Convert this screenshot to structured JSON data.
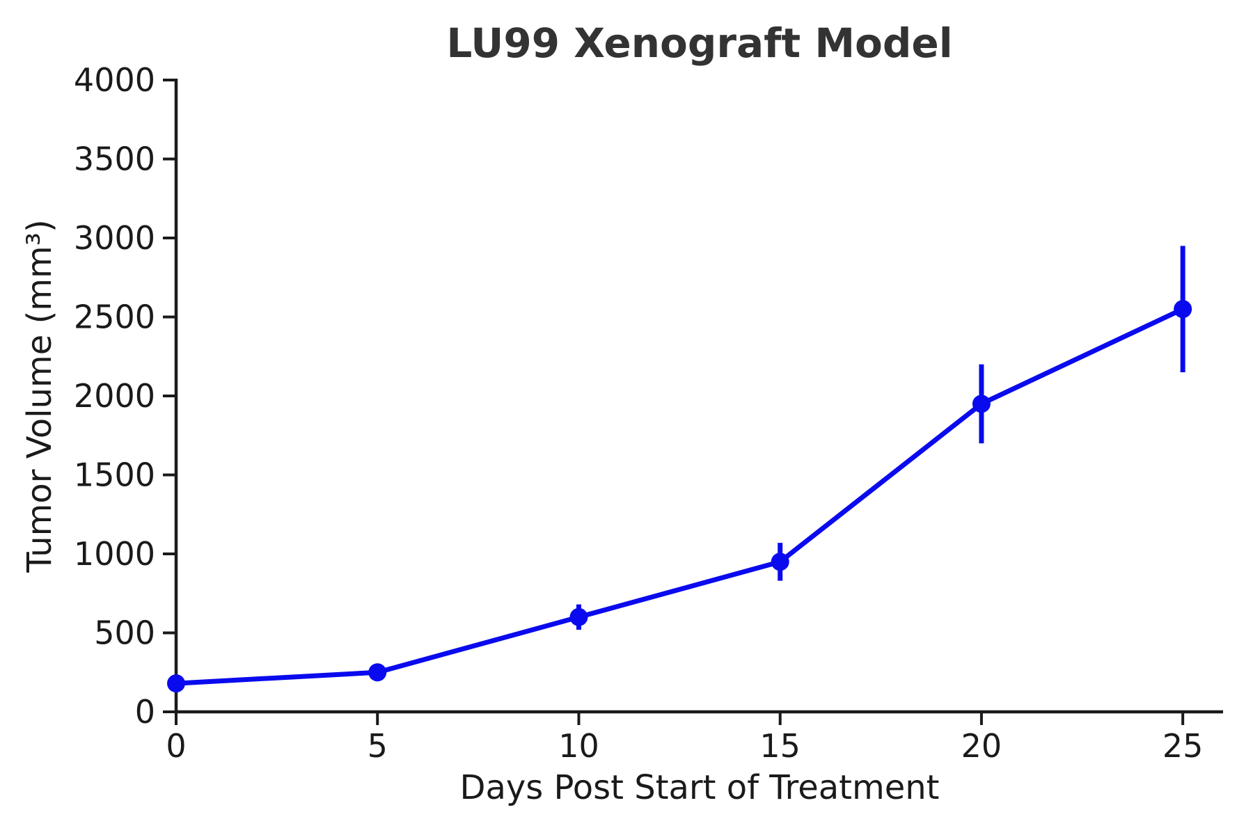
{
  "figure": {
    "background": "#ffffff"
  },
  "chart_data": {
    "type": "line",
    "title": "LU99 Xenograft Model",
    "xlabel": "Days Post Start of Treatment",
    "ylabel": "Tumor Volume (mm³)",
    "x": [
      0,
      5,
      10,
      15,
      20,
      25
    ],
    "series": [
      {
        "name": "Tumor volume",
        "values": [
          180,
          250,
          600,
          950,
          1950,
          2550
        ],
        "errors": [
          20,
          30,
          80,
          120,
          250,
          400
        ],
        "color": "#0a0aee",
        "marker": "circle"
      }
    ],
    "xlim": [
      0,
      26
    ],
    "ylim": [
      0,
      4000
    ],
    "xticks": [
      0,
      5,
      10,
      15,
      20,
      25
    ],
    "yticks": [
      0,
      500,
      1000,
      1500,
      2000,
      2500,
      3000,
      3500,
      4000
    ],
    "grid": false,
    "legend": false,
    "error_bar_caps": false,
    "axis_color": "#1a1a1a",
    "title_color": "#333333"
  }
}
